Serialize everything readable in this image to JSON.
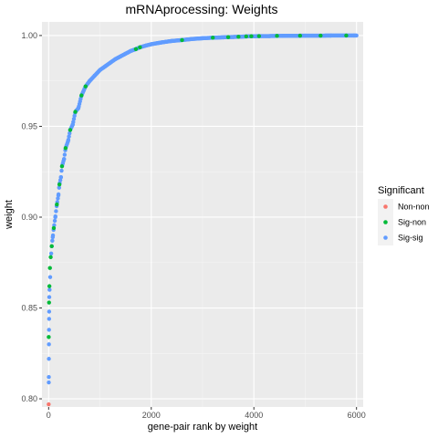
{
  "chart_data": {
    "type": "scatter",
    "title": "mRNAprocessing: Weights",
    "xlabel": "gene-pair rank by weight",
    "ylabel": "weight",
    "xlim": [
      -130,
      6130
    ],
    "ylim": [
      0.7955,
      1.0075
    ],
    "x_ticks": [
      0,
      2000,
      4000,
      6000
    ],
    "x_tick_labels": [
      "0",
      "2000",
      "4000",
      "6000"
    ],
    "y_ticks": [
      0.8,
      0.85,
      0.9,
      0.95,
      1.0
    ],
    "y_tick_labels": [
      "0.80",
      "0.85",
      "0.90",
      "0.95",
      "1.00"
    ],
    "grid": true,
    "legend": {
      "title": "Significant",
      "placement": "right",
      "entries": [
        {
          "label": "Non-non",
          "color": "#F8766D"
        },
        {
          "label": "Sig-non",
          "color": "#00BA38"
        },
        {
          "label": "Sig-sig",
          "color": "#619CFF"
        }
      ]
    },
    "series": [
      {
        "name": "Non-non",
        "color": "#F8766D",
        "points": [
          [
            1,
            0.797
          ]
        ]
      },
      {
        "name": "Sig-non",
        "color": "#00BA38",
        "points": [
          [
            2,
            0.834
          ],
          [
            8,
            0.853
          ],
          [
            15,
            0.862
          ],
          [
            25,
            0.872
          ],
          [
            40,
            0.878
          ],
          [
            60,
            0.884
          ],
          [
            100,
            0.894
          ],
          [
            160,
            0.907
          ],
          [
            210,
            0.918
          ],
          [
            260,
            0.928
          ],
          [
            330,
            0.938
          ],
          [
            420,
            0.948
          ],
          [
            520,
            0.958
          ],
          [
            640,
            0.967
          ],
          [
            720,
            0.972
          ],
          [
            1700,
            0.9925
          ],
          [
            1780,
            0.9935
          ],
          [
            2600,
            0.9975
          ],
          [
            3200,
            0.9988
          ],
          [
            3500,
            0.9991
          ],
          [
            3700,
            0.9993
          ],
          [
            3850,
            0.9995
          ],
          [
            3950,
            0.9996
          ],
          [
            4100,
            0.9997
          ],
          [
            4450,
            0.9998
          ],
          [
            4900,
            0.9999
          ],
          [
            5300,
            0.99995
          ],
          [
            5800,
            1.0
          ]
        ]
      },
      {
        "name": "Sig-sig",
        "color": "#619CFF",
        "points": [
          [
            3,
            0.809
          ],
          [
            4,
            0.812
          ],
          [
            5,
            0.822
          ],
          [
            6,
            0.83
          ],
          [
            7,
            0.838
          ],
          [
            9,
            0.844
          ],
          [
            10,
            0.848
          ],
          [
            12,
            0.856
          ],
          [
            18,
            0.86
          ],
          [
            30,
            0.867
          ],
          [
            50,
            0.88
          ],
          [
            80,
            0.889
          ],
          [
            130,
            0.9
          ],
          [
            190,
            0.912
          ],
          [
            240,
            0.922
          ],
          [
            300,
            0.932
          ],
          [
            380,
            0.942
          ],
          [
            470,
            0.951
          ],
          [
            580,
            0.96
          ],
          [
            800,
            0.975
          ],
          [
            900,
            0.978
          ],
          [
            1000,
            0.981
          ],
          [
            1100,
            0.983
          ],
          [
            1200,
            0.985
          ],
          [
            1300,
            0.987
          ],
          [
            1400,
            0.9885
          ],
          [
            1500,
            0.99
          ],
          [
            1600,
            0.9915
          ],
          [
            1900,
            0.9945
          ],
          [
            2000,
            0.9952
          ],
          [
            2200,
            0.9962
          ],
          [
            2400,
            0.997
          ],
          [
            2800,
            0.9981
          ],
          [
            3000,
            0.9985
          ],
          [
            3400,
            0.999
          ],
          [
            3600,
            0.9992
          ],
          [
            4000,
            0.9996
          ],
          [
            4300,
            0.9997
          ],
          [
            4600,
            0.99985
          ],
          [
            5000,
            0.99992
          ],
          [
            5500,
            0.99997
          ],
          [
            5950,
            1.0
          ]
        ]
      }
    ]
  }
}
